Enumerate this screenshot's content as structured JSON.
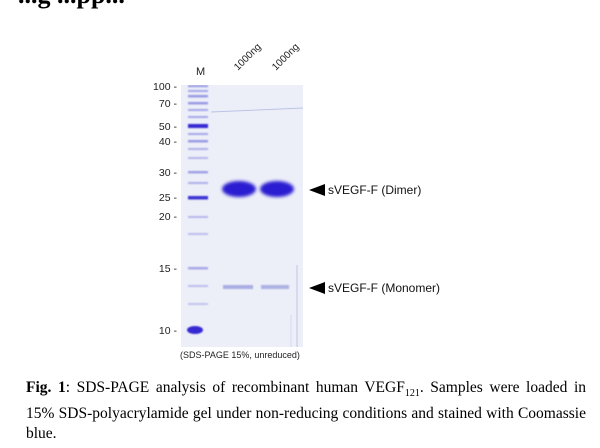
{
  "header_fragment": "...g ...pp...",
  "lane_labels": [
    "M",
    "1000ng",
    "1000ng"
  ],
  "mw_markers": [
    "100",
    "70",
    "50",
    "40",
    "30",
    "25",
    "20",
    "15",
    "10"
  ],
  "bands": {
    "dimer_label": "sVEGF-F (Dimer)",
    "monomer_label": "sVEGF-F (Monomer)"
  },
  "gel_note": "(SDS-PAGE 15%, unreduced)",
  "caption": {
    "fig_label": "Fig. 1",
    "text_before_sub": ": SDS-PAGE analysis of recombinant human VEGF",
    "subscript": "121",
    "text_after_sub": ". Samples were loaded in 15% SDS-polyacrylamide gel under non-reducing conditions and stained with Coomassie blue."
  },
  "colors": {
    "stain": "#2a1fd0",
    "gel_bg": "#eef0f8"
  }
}
